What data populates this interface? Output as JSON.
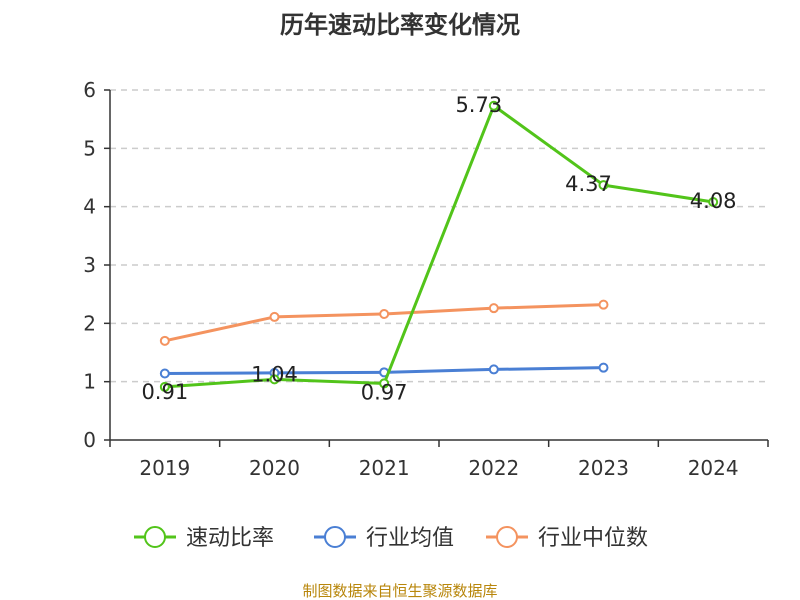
{
  "chart_data": {
    "type": "line",
    "title": "历年速动比率变化情况",
    "categories": [
      "2019",
      "2020",
      "2021",
      "2022",
      "2023",
      "2024"
    ],
    "ylim": [
      0,
      6
    ],
    "yticks": [
      "0",
      "1",
      "2",
      "3",
      "4",
      "5",
      "6"
    ],
    "grid": true,
    "legend_position": "bottom",
    "series": [
      {
        "name": "速动比率",
        "color": "#52c41a",
        "values": [
          0.91,
          1.04,
          0.97,
          5.73,
          4.37,
          4.08
        ],
        "labels": [
          "0.91",
          "1.04",
          "0.97",
          "5.73",
          "4.37",
          "4.08"
        ]
      },
      {
        "name": "行业均值",
        "color": "#4a7fd4",
        "values": [
          1.14,
          1.15,
          1.16,
          1.21,
          1.24,
          null
        ]
      },
      {
        "name": "行业中位数",
        "color": "#f4935f",
        "values": [
          1.7,
          2.11,
          2.16,
          2.26,
          2.32,
          null
        ]
      }
    ]
  },
  "source_text": "制图数据来自恒生聚源数据库"
}
